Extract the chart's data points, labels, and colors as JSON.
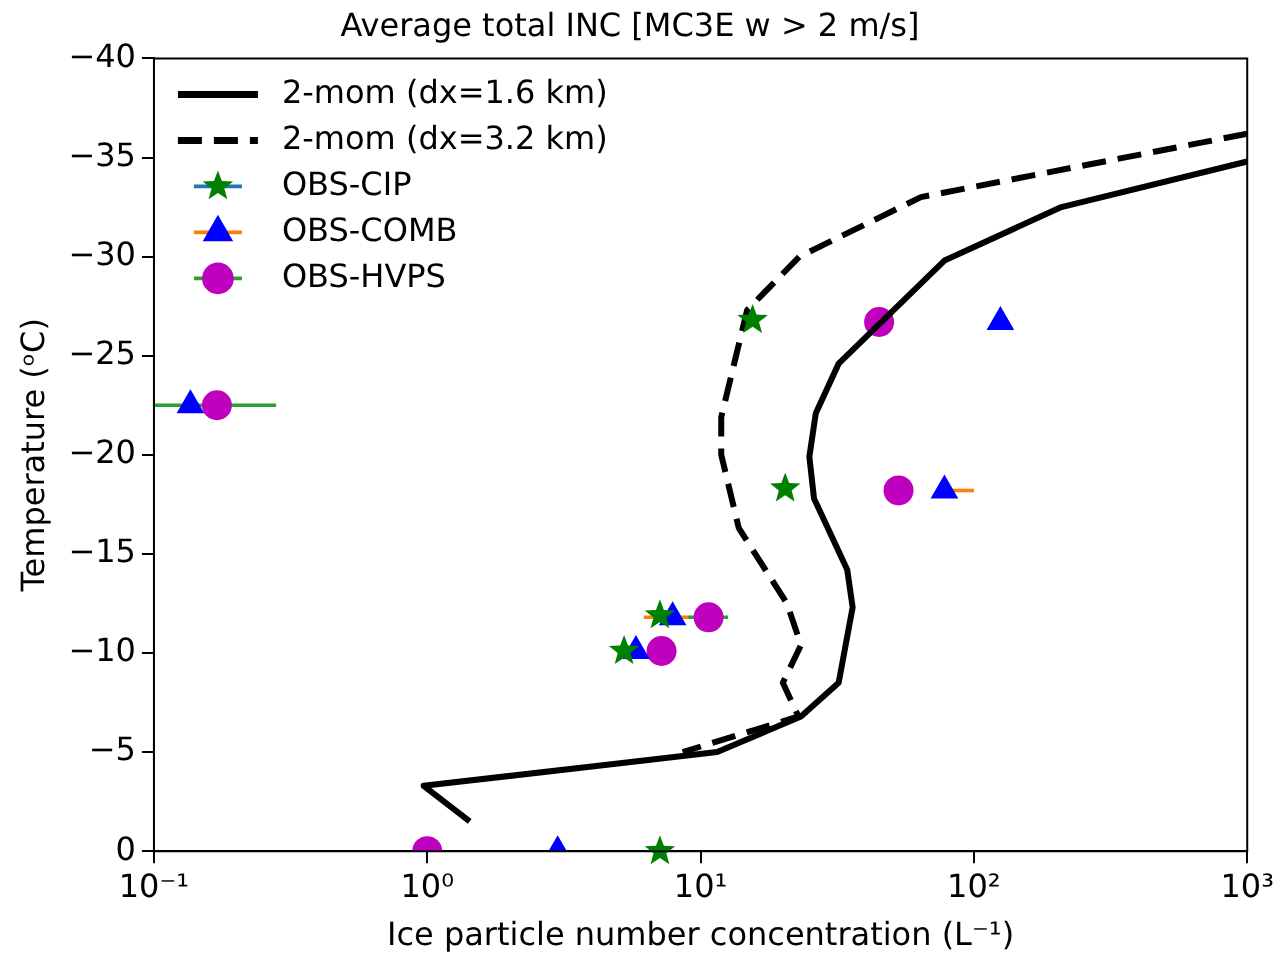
{
  "chart_data": {
    "type": "line",
    "title": "Average total INC [MC3E w > 2 m/s]",
    "xlabel": "Ice particle number concentration (L⁻¹)",
    "ylabel": "Temperature (ᵒC)",
    "log": "x",
    "xlim": [
      0.1,
      1000
    ],
    "xticks": [
      {
        "value": 0.1,
        "label": "10⁻¹"
      },
      {
        "value": 1,
        "label": "10⁰"
      },
      {
        "value": 10,
        "label": "10¹"
      },
      {
        "value": 100,
        "label": "10²"
      },
      {
        "value": 1000,
        "label": "10³"
      }
    ],
    "ylim": [
      0,
      -40
    ],
    "yticks": [
      0,
      -5,
      -10,
      -15,
      -20,
      -25,
      -30,
      -35,
      -40
    ],
    "grid": false,
    "legend": "top left",
    "series": [
      {
        "name": "2-mom (dx=1.6 km)",
        "type": "line",
        "line_style": "solid",
        "marker": "none",
        "color": "#000000",
        "x": [
          1000,
          209,
          78,
          32,
          26.4,
          25,
          26,
          34.4,
          36,
          32,
          23.3,
          11.5,
          0.97,
          1.43
        ],
        "values": [
          -34.8,
          -32.5,
          -29.8,
          -24.6,
          -22.1,
          -19.9,
          -17.8,
          -14.2,
          -12.3,
          -8.5,
          -6.8,
          -5.0,
          -3.3,
          -1.5
        ]
      },
      {
        "name": "2-mom (dx=3.2 km)",
        "type": "line",
        "line_style": "dashed",
        "marker": "none",
        "color": "#000000",
        "x": [
          1000,
          64,
          23,
          14.8,
          11.9,
          11.9,
          13.8,
          20.7,
          23.3,
          20,
          22.8,
          8.6
        ],
        "values": [
          -36.2,
          -33.0,
          -30.0,
          -27.3,
          -21.9,
          -20.0,
          -16.3,
          -12.5,
          -10.4,
          -8.5,
          -6.8,
          -5.0
        ]
      },
      {
        "name": "OBS-CIP",
        "type": "scatter",
        "marker": "star",
        "color": "#008000",
        "x": [
          15.5,
          20.4,
          7.1,
          5.25,
          7.1
        ],
        "values": [
          -26.8,
          -18.3,
          -11.9,
          -10.1,
          0
        ]
      },
      {
        "name": "OBS-COMB",
        "type": "scatter",
        "marker": "triangle",
        "color": "#0000ff",
        "x": [
          0.136,
          125,
          78,
          7.9,
          5.8,
          3.0
        ],
        "values": [
          -22.5,
          -26.7,
          -18.2,
          -11.8,
          -10.1,
          0
        ],
        "xerrors": [
          null,
          null,
          [
            78,
            100
          ],
          [
            6.2,
            9
          ],
          null,
          null
        ]
      },
      {
        "name": "OBS-HVPS",
        "type": "scatter",
        "marker": "circle",
        "color": "#bf00bf",
        "x": [
          0.17,
          45,
          53,
          10.7,
          7.2,
          1.0
        ],
        "values": [
          -22.5,
          -26.7,
          -18.2,
          -11.8,
          -10.1,
          0
        ],
        "xerrors": [
          [
            0.1,
            0.28
          ],
          null,
          null,
          [
            9,
            12.6
          ],
          null,
          null
        ]
      }
    ]
  }
}
